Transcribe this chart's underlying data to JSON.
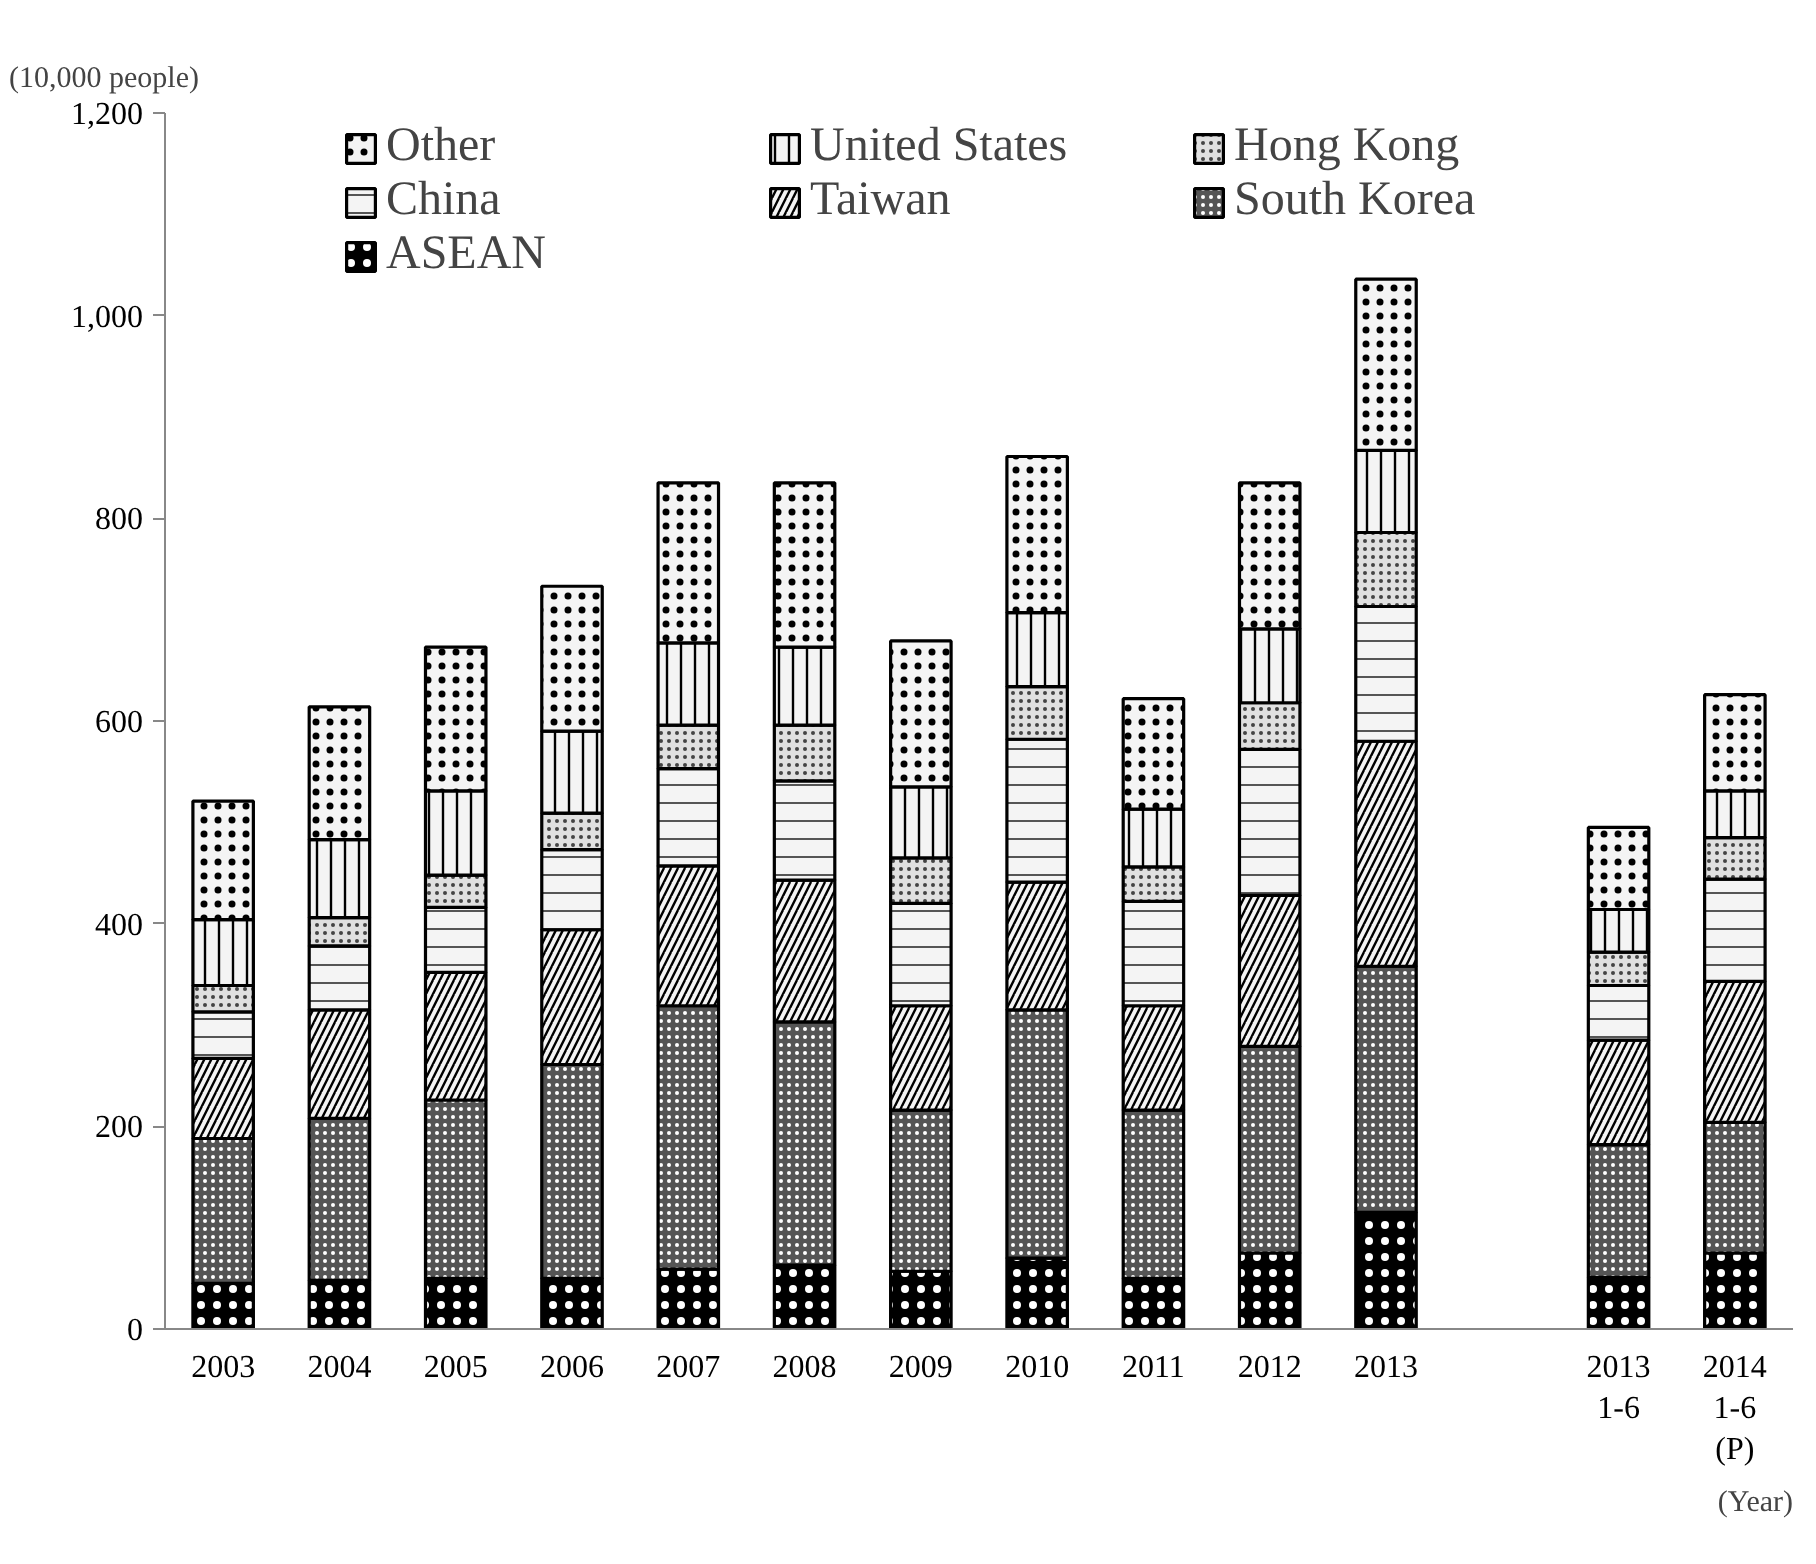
{
  "chart_data": {
    "type": "bar",
    "stacked": true,
    "ylabel": "(10,000 people)",
    "annotations": [
      "(Year)"
    ],
    "categories": [
      "2003",
      "2004",
      "2005",
      "2006",
      "2007",
      "2008",
      "2009",
      "2010",
      "2011",
      "2012",
      "2013",
      null,
      "2013\n1-6",
      "2014\n1-6\n(P)"
    ],
    "series": [
      {
        "name": "ASEAN",
        "color": "#000000",
        "values": [
          45,
          48,
          50,
          50,
          59,
          63,
          57,
          70,
          50,
          75,
          115,
          null,
          51,
          75
        ]
      },
      {
        "name": "South Korea",
        "color": "#555555",
        "values": [
          143,
          160,
          176,
          211,
          260,
          240,
          159,
          245,
          166,
          204,
          243,
          null,
          131,
          129
        ]
      },
      {
        "name": "Taiwan",
        "color": "#f4f4f4",
        "values": [
          79,
          107,
          126,
          133,
          138,
          140,
          103,
          126,
          103,
          149,
          222,
          null,
          103,
          139
        ]
      },
      {
        "name": "China",
        "color": "#f4f4f4",
        "values": [
          46,
          63,
          64,
          79,
          96,
          98,
          101,
          141,
          103,
          144,
          133,
          null,
          54,
          101
        ]
      },
      {
        "name": "Hong Kong",
        "color": "#e0e0e0",
        "values": [
          26,
          28,
          32,
          36,
          43,
          55,
          45,
          52,
          34,
          46,
          73,
          null,
          33,
          41
        ]
      },
      {
        "name": "United States",
        "color": "#f4f4f4",
        "values": [
          65,
          77,
          83,
          81,
          81,
          77,
          70,
          73,
          57,
          73,
          81,
          null,
          42,
          46
        ]
      },
      {
        "name": "Other",
        "color": "#f4f4f4",
        "values": [
          117,
          131,
          142,
          143,
          158,
          162,
          144,
          154,
          109,
          144,
          169,
          null,
          81,
          95
        ]
      }
    ],
    "ylim": [
      0,
      1200
    ],
    "yticks": [
      0,
      200,
      400,
      600,
      800,
      {
        "value": 1000,
        "label": "1,000"
      },
      {
        "value": 1200,
        "label": "1,200"
      }
    ],
    "grid": false,
    "legend": "top"
  }
}
